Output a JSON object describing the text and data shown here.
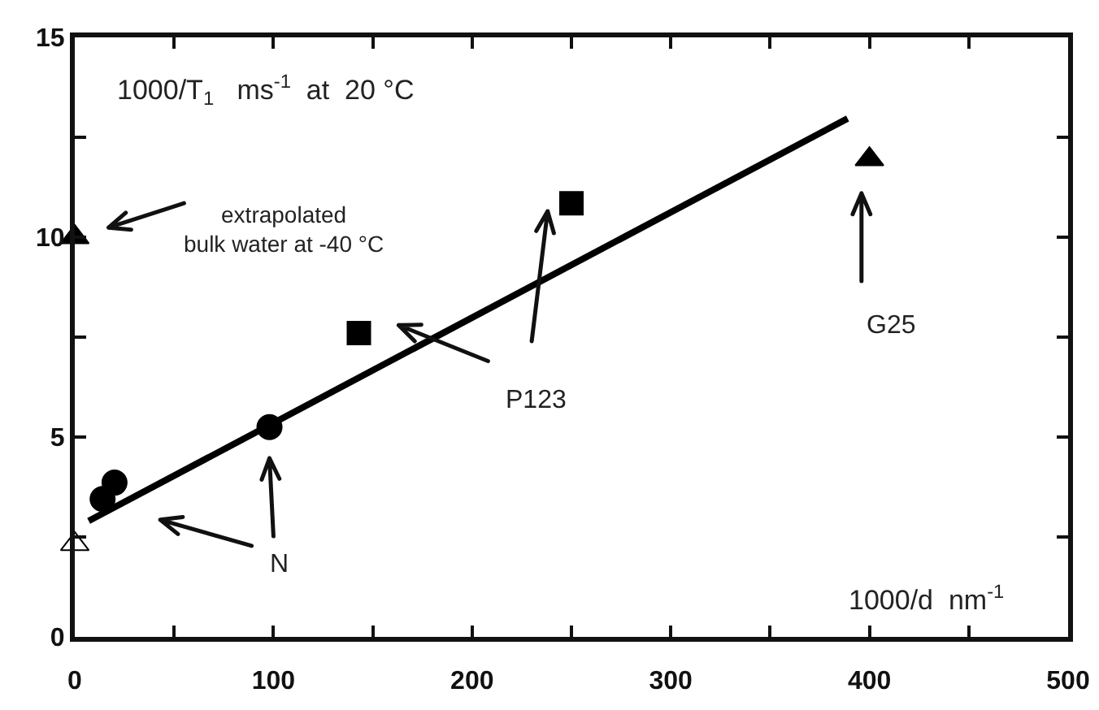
{
  "chart_data": {
    "type": "scatter",
    "xlabel": "1000/d  nm$^{-1}$",
    "ylabel": "1000/T$_{1}$   ms$^{-1}$  at  20 °C",
    "series": [
      {
        "type": "line",
        "color": "#000000",
        "marker": "none",
        "x": [
          7,
          389
        ],
        "values": [
          2.9,
          12.97
        ]
      },
      {
        "color": "#000000",
        "marker": "circle",
        "x": [
          14,
          20,
          98
        ],
        "values": [
          3.45,
          3.86,
          5.25
        ]
      },
      {
        "color": "#000000",
        "marker": "square",
        "x": [
          143,
          250
        ],
        "values": [
          7.6,
          10.85
        ]
      },
      {
        "color": "#000000",
        "marker": "triangle",
        "x": [
          400,
          0
        ],
        "values": [
          11.95,
          10
        ]
      },
      {
        "color": "#ffffff",
        "marker": "triangle",
        "x": [
          0
        ],
        "values": [
          2.32
        ]
      }
    ],
    "annotations": [
      "extrapolated\nbulk water at -40 °C",
      "N",
      "P123",
      "G25"
    ],
    "xlim": [
      0,
      500
    ],
    "xticks": [
      0,
      {
        "value": 50,
        "label": null
      },
      100,
      {
        "value": 150,
        "label": null
      },
      200,
      {
        "value": 250,
        "label": null
      },
      300,
      {
        "value": 350,
        "label": null
      },
      400,
      {
        "value": 450,
        "label": null
      },
      500
    ],
    "ylim": [
      0,
      15
    ],
    "yticks": [
      0,
      {
        "value": 2.5,
        "label": null
      },
      5,
      {
        "value": 7.5,
        "label": null
      },
      10,
      {
        "value": 12.5,
        "label": null
      },
      15
    ],
    "grid": false
  }
}
